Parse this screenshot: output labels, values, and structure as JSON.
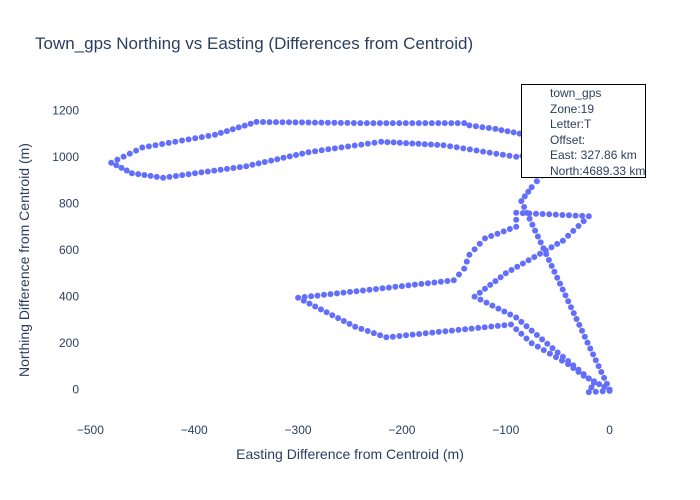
{
  "chart_data": {
    "type": "scatter",
    "title": "Town_gps Northing vs Easting (Differences from Centroid)",
    "xlabel": "Easting Difference from Centroid (m)",
    "ylabel": "Northing Difference from Centroid (m)",
    "xlim": [
      -510,
      10
    ],
    "ylim": [
      -130,
      1330
    ],
    "x_ticks": [
      -500,
      -400,
      -300,
      -200,
      -100,
      0
    ],
    "y_ticks": [
      0,
      200,
      400,
      600,
      800,
      1000,
      1200
    ],
    "x_tick_labels": [
      "−500",
      "−400",
      "−300",
      "−200",
      "−100",
      "0"
    ],
    "y_tick_labels": [
      "0",
      "200",
      "400",
      "600",
      "800",
      "1000",
      "1200"
    ],
    "marker_color": "#636efa",
    "grid": false,
    "legend_placement": "top-right",
    "series": [
      {
        "name": "town_gps",
        "path_vertices": [
          [
            0,
            0
          ],
          [
            -25,
            60
          ],
          [
            -40,
            110
          ],
          [
            -75,
            200
          ],
          [
            -95,
            280
          ],
          [
            -215,
            225
          ],
          [
            -245,
            270
          ],
          [
            -300,
            395
          ],
          [
            -150,
            470
          ],
          [
            -140,
            520
          ],
          [
            -135,
            580
          ],
          [
            -120,
            650
          ],
          [
            -90,
            700
          ],
          [
            -90,
            760
          ],
          [
            -20,
            745
          ],
          [
            -45,
            640
          ],
          [
            -100,
            500
          ],
          [
            -130,
            400
          ],
          [
            -90,
            310
          ],
          [
            -50,
            160
          ],
          [
            -15,
            30
          ],
          [
            -20,
            -10
          ],
          [
            0,
            -5
          ],
          [
            0,
            0
          ],
          [
            -85,
            810
          ],
          [
            -75,
            870
          ],
          [
            -65,
            920
          ],
          [
            -60,
            980
          ],
          [
            -50,
            1040
          ],
          [
            -60,
            1020
          ],
          [
            -90,
            1000
          ],
          [
            -160,
            1050
          ],
          [
            -220,
            1065
          ],
          [
            -290,
            1020
          ],
          [
            -350,
            960
          ],
          [
            -430,
            910
          ],
          [
            -460,
            930
          ],
          [
            -480,
            975
          ],
          [
            -450,
            1040
          ],
          [
            -380,
            1095
          ],
          [
            -340,
            1150
          ],
          [
            -240,
            1145
          ],
          [
            -140,
            1145
          ],
          [
            -135,
            1135
          ],
          [
            -110,
            1120
          ],
          [
            -75,
            1090
          ],
          [
            -65,
            1060
          ],
          [
            -55,
            1040
          ]
        ]
      }
    ]
  },
  "legend": {
    "lines": [
      "town_gps",
      "Zone:19",
      "Letter:T",
      "Offset:",
      "East: 327.86 km",
      "North:4689.33 km"
    ]
  }
}
